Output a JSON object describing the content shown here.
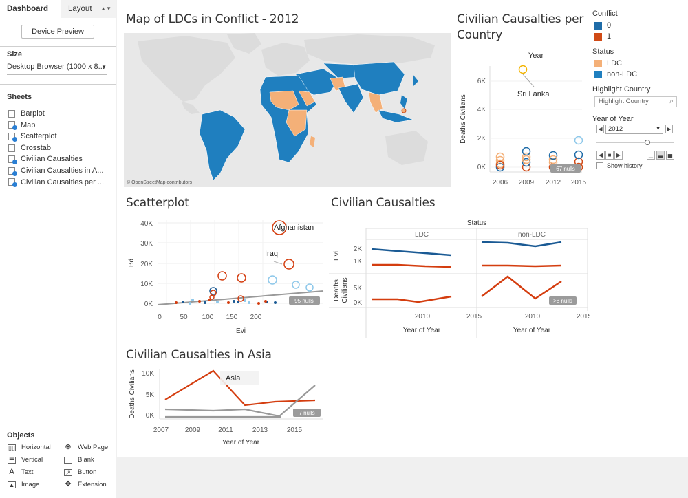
{
  "left_panel": {
    "tabs": {
      "dashboard": "Dashboard",
      "layout": "Layout"
    },
    "device_preview": "Device Preview",
    "size": {
      "title": "Size",
      "value": "Desktop Browser (1000 x 8..."
    },
    "sheets": {
      "title": "Sheets",
      "items": [
        {
          "label": "Barplot",
          "used": false
        },
        {
          "label": "Map",
          "used": true
        },
        {
          "label": "Scatterplot",
          "used": true
        },
        {
          "label": "Crosstab",
          "used": false
        },
        {
          "label": "Civilian Causalties",
          "used": true
        },
        {
          "label": "Civilian Causalties in A...",
          "used": true
        },
        {
          "label": "Civilian Causalties per ...",
          "used": true
        }
      ]
    },
    "objects": {
      "title": "Objects",
      "items": [
        "Horizontal",
        "Web Page",
        "Vertical",
        "Blank",
        "Text",
        "Button",
        "Image",
        "Extension"
      ]
    }
  },
  "colors": {
    "ldc": "#f4b078",
    "non_ldc": "#1f7fbf",
    "conflict_0": "#1f6ca8",
    "conflict_1": "#d04a16",
    "dark_blue": "#1a5a94",
    "red": "#d43d0f",
    "gray_line": "#999999",
    "light_blue": "#8ec8ea"
  },
  "map": {
    "title": "Map of LDCs in Conflict - 2012",
    "attribution": "© OpenStreetMap contributors"
  },
  "per_country": {
    "title_line1": "Civilian Causalties per",
    "title_line2": "Country",
    "header": "Year",
    "annotation": "Sri Lanka",
    "nulls": "67 nulls",
    "y_label": "Deaths Civilians",
    "y_ticks": [
      "0K",
      "2K",
      "4K",
      "6K"
    ],
    "x_ticks": [
      "2006",
      "2009",
      "2012",
      "2015"
    ]
  },
  "scatter": {
    "title": "Scatterplot",
    "x_label": "Evi",
    "y_label": "Bd",
    "x_ticks": [
      "0",
      "50",
      "100",
      "150",
      "200"
    ],
    "y_ticks": [
      "0K",
      "10K",
      "20K",
      "30K",
      "40K"
    ],
    "annotation_afghanistan": "Afghanistan",
    "annotation_iraq": "Iraq",
    "nulls": "95 nulls"
  },
  "causalties": {
    "title": "Civilian Causalties",
    "header": "Status",
    "col_ldc": "LDC",
    "col_nonldc": "non-LDC",
    "row1_label": "Evi",
    "row2_label_a": "Deaths",
    "row2_label_b": "Civilians",
    "row1_ticks": [
      "1K",
      "2K"
    ],
    "row2_ticks": [
      "0K",
      "5K"
    ],
    "x_ticks": [
      "2010",
      "2015"
    ],
    "x_label": "Year of Year",
    "nulls": ">8 nulls"
  },
  "asia": {
    "title": "Civilian Causalties in Asia",
    "annotation": "Asia",
    "y_label": "Deaths Civilians",
    "y_ticks": [
      "0K",
      "5K",
      "10K"
    ],
    "x_ticks": [
      "2007",
      "2009",
      "2011",
      "2013",
      "2015"
    ],
    "x_label": "Year of Year",
    "nulls": "7 nulls"
  },
  "legends": {
    "conflict": {
      "title": "Conflict",
      "items": [
        "0",
        "1"
      ]
    },
    "status": {
      "title": "Status",
      "items": [
        "LDC",
        "non-LDC"
      ]
    },
    "highlight": {
      "title": "Highlight Country",
      "placeholder": "Highlight Country"
    },
    "year_filter": {
      "title": "Year of Year",
      "value": "2012",
      "show_history": "Show history"
    }
  }
}
